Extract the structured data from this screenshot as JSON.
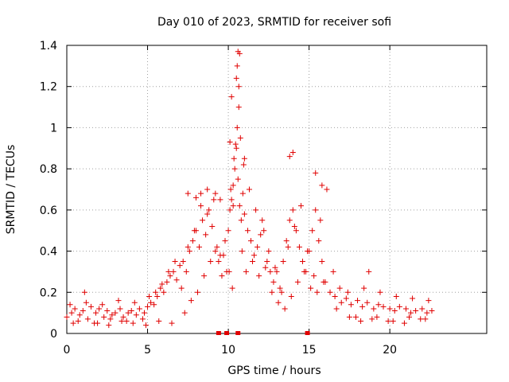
{
  "chart_data": {
    "type": "scatter",
    "title": "Day 010 of 2023, SRMTID for receiver sofi",
    "xlabel": "GPS time / hours",
    "ylabel": "SRMTID / TECUs",
    "xlim": [
      0,
      26
    ],
    "ylim": [
      0,
      1.4
    ],
    "xticks": [
      0,
      5,
      10,
      15,
      20
    ],
    "xtick_labels": [
      "0",
      "5",
      "10",
      "15",
      "20"
    ],
    "yticks": [
      0,
      0.2,
      0.4,
      0.6,
      0.8,
      1.0,
      1.2,
      1.4
    ],
    "ytick_labels": [
      "0",
      "0.2",
      "0.4",
      "0.6",
      "0.8",
      "1",
      "1.2",
      "1.4"
    ],
    "grid": true,
    "marker": "+",
    "color": "#e00000",
    "series": [
      {
        "name": "SRMTID",
        "x": [
          0.0,
          0.3,
          0.5,
          0.8,
          1.0,
          1.3,
          1.5,
          1.8,
          2.0,
          2.3,
          2.5,
          2.8,
          3.0,
          3.3,
          3.5,
          3.8,
          4.0,
          4.3,
          4.5,
          4.8,
          5.0,
          5.2,
          5.4,
          5.6,
          5.8,
          6.0,
          6.2,
          6.4,
          6.6,
          6.8,
          7.0,
          7.2,
          7.4,
          7.6,
          7.8,
          8.0,
          8.2,
          8.4,
          8.6,
          8.8,
          9.0,
          9.2,
          9.4,
          9.6,
          9.8,
          10.0,
          10.1,
          10.2,
          10.3,
          10.4,
          10.5,
          10.6,
          10.7,
          10.8,
          10.9,
          11.0,
          11.2,
          11.4,
          11.6,
          11.8,
          12.0,
          12.2,
          12.4,
          12.6,
          12.8,
          13.0,
          13.2,
          13.4,
          13.6,
          13.8,
          14.0,
          14.2,
          14.4,
          14.6,
          14.8,
          15.0,
          15.2,
          15.4,
          15.6,
          15.8,
          16.0,
          16.3,
          16.6,
          17.0,
          17.3,
          17.6,
          18.0,
          18.3,
          18.6,
          19.0,
          19.3,
          19.6,
          20.0,
          20.3,
          20.6,
          21.0,
          21.3,
          21.6,
          22.0,
          22.3,
          22.6,
          0.2,
          0.7,
          1.2,
          1.7,
          2.2,
          2.7,
          3.2,
          3.7,
          4.2,
          4.7,
          5.1,
          5.5,
          5.9,
          6.3,
          6.7,
          7.1,
          7.5,
          7.9,
          8.3,
          8.7,
          9.1,
          9.5,
          9.9,
          10.15,
          10.35,
          10.55,
          10.75,
          10.95,
          11.3,
          11.7,
          12.1,
          12.5,
          12.9,
          13.3,
          13.7,
          14.1,
          14.5,
          14.9,
          15.3,
          15.7,
          16.1,
          16.5,
          16.9,
          17.4,
          17.9,
          18.4,
          18.9,
          19.4,
          19.9,
          20.4,
          20.9,
          21.4,
          21.9,
          22.4,
          0.4,
          1.1,
          1.9,
          2.6,
          3.4,
          4.1,
          4.9,
          5.7,
          6.5,
          7.3,
          7.7,
          8.1,
          8.5,
          8.9,
          9.3,
          9.7,
          10.05,
          10.25,
          10.45,
          10.65,
          10.85,
          11.1,
          11.5,
          11.9,
          12.3,
          12.7,
          13.1,
          13.5,
          13.9,
          14.3,
          14.7,
          15.1,
          15.5,
          15.9,
          16.7,
          17.5,
          18.2,
          18.7,
          19.2,
          20.2,
          21.2,
          22.2,
          7.5,
          8.0,
          8.7,
          9.2,
          10.3,
          10.5,
          10.7,
          11.0,
          13.8,
          14.0,
          15.4,
          15.8,
          10.1,
          10.2,
          10.6,
          10.55,
          10.65,
          8.3,
          9.5
        ],
        "y": [
          0.08,
          0.1,
          0.12,
          0.09,
          0.11,
          0.07,
          0.13,
          0.1,
          0.12,
          0.08,
          0.11,
          0.09,
          0.1,
          0.12,
          0.08,
          0.1,
          0.11,
          0.09,
          0.12,
          0.1,
          0.13,
          0.15,
          0.14,
          0.18,
          0.22,
          0.2,
          0.25,
          0.28,
          0.3,
          0.26,
          0.33,
          0.35,
          0.3,
          0.4,
          0.45,
          0.5,
          0.42,
          0.55,
          0.48,
          0.6,
          0.52,
          0.4,
          0.35,
          0.28,
          0.45,
          0.5,
          0.6,
          0.65,
          0.72,
          0.8,
          0.9,
          0.75,
          0.62,
          0.55,
          0.68,
          0.58,
          0.5,
          0.45,
          0.38,
          0.42,
          0.48,
          0.5,
          0.35,
          0.3,
          0.25,
          0.3,
          0.22,
          0.35,
          0.45,
          0.55,
          0.6,
          0.5,
          0.42,
          0.35,
          0.3,
          0.4,
          0.5,
          0.6,
          0.45,
          0.35,
          0.25,
          0.2,
          0.18,
          0.15,
          0.17,
          0.14,
          0.16,
          0.13,
          0.15,
          0.12,
          0.14,
          0.13,
          0.12,
          0.11,
          0.13,
          0.12,
          0.1,
          0.11,
          0.12,
          0.1,
          0.11,
          0.14,
          0.06,
          0.15,
          0.05,
          0.14,
          0.07,
          0.16,
          0.06,
          0.15,
          0.07,
          0.18,
          0.2,
          0.24,
          0.3,
          0.35,
          0.22,
          0.42,
          0.5,
          0.62,
          0.58,
          0.65,
          0.38,
          0.3,
          0.7,
          0.85,
          1.0,
          0.95,
          0.82,
          0.7,
          0.6,
          0.55,
          0.4,
          0.32,
          0.2,
          0.42,
          0.52,
          0.62,
          0.4,
          0.28,
          0.55,
          0.7,
          0.3,
          0.22,
          0.2,
          0.08,
          0.22,
          0.07,
          0.2,
          0.06,
          0.18,
          0.05,
          0.17,
          0.07,
          0.16,
          0.05,
          0.2,
          0.05,
          0.04,
          0.06,
          0.05,
          0.04,
          0.06,
          0.05,
          0.1,
          0.16,
          0.2,
          0.28,
          0.35,
          0.42,
          0.38,
          0.3,
          0.22,
          0.92,
          1.1,
          0.4,
          0.3,
          0.35,
          0.28,
          0.32,
          0.2,
          0.15,
          0.12,
          0.18,
          0.25,
          0.3,
          0.22,
          0.2,
          0.25,
          0.12,
          0.08,
          0.06,
          0.3,
          0.08,
          0.06,
          0.08,
          0.07,
          0.68,
          0.66,
          0.7,
          0.68,
          0.62,
          1.24,
          1.36,
          0.85,
          0.86,
          0.88,
          0.78,
          0.72,
          0.93,
          1.15,
          1.37,
          1.3,
          1.2,
          0.68,
          0.65
        ]
      }
    ],
    "bottom_flags_x": [
      9.4,
      9.9,
      10.6,
      14.9
    ]
  }
}
